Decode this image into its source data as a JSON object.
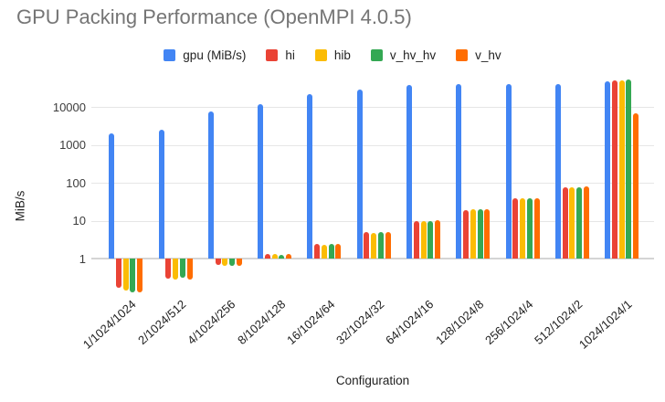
{
  "chart_data": {
    "type": "bar",
    "title": "GPU Packing Performance (OpenMPI 4.0.5)",
    "xlabel": "Configuration",
    "ylabel": "MiB/s",
    "y_scale": "log",
    "yticks": [
      1,
      10,
      100,
      1000,
      10000
    ],
    "ylim": [
      0.1,
      60000
    ],
    "grid": true,
    "legend_position": "top",
    "categories": [
      "1/1024/1024",
      "2/1024/512",
      "4/1024/256",
      "8/1024/128",
      "16/1024/64",
      "32/1024/32",
      "64/1024/16",
      "128/1024/8",
      "256/1024/4",
      "512/1024/2",
      "1024/1024/1"
    ],
    "series": [
      {
        "name": "gpu (MiB/s)",
        "color": "#4285F4",
        "values": [
          2000,
          2500,
          7800,
          12000,
          22000,
          30000,
          38000,
          40000,
          42000,
          40000,
          48000
        ]
      },
      {
        "name": "hi",
        "color": "#EA4335",
        "values": [
          0.17,
          0.3,
          0.66,
          1.35,
          2.4,
          5.0,
          9.8,
          19.5,
          39,
          76,
          52000
        ]
      },
      {
        "name": "hib",
        "color": "#FBBC04",
        "values": [
          0.14,
          0.28,
          0.65,
          1.3,
          2.3,
          4.8,
          10,
          20,
          40,
          78,
          50000
        ]
      },
      {
        "name": "v_hv_hv",
        "color": "#34A853",
        "values": [
          0.13,
          0.31,
          0.64,
          1.25,
          2.4,
          4.9,
          10,
          20,
          40,
          77,
          53000
        ]
      },
      {
        "name": "v_hv",
        "color": "#FF6D01",
        "values": [
          0.13,
          0.28,
          0.65,
          1.3,
          2.4,
          5.0,
          10.3,
          20,
          40,
          80,
          6800
        ]
      }
    ]
  },
  "colors": {
    "title_text": "#757575",
    "axis_text": "#222222",
    "gridline": "#e6e6e6",
    "baseline": "#d5d5d5",
    "background": "#ffffff"
  }
}
